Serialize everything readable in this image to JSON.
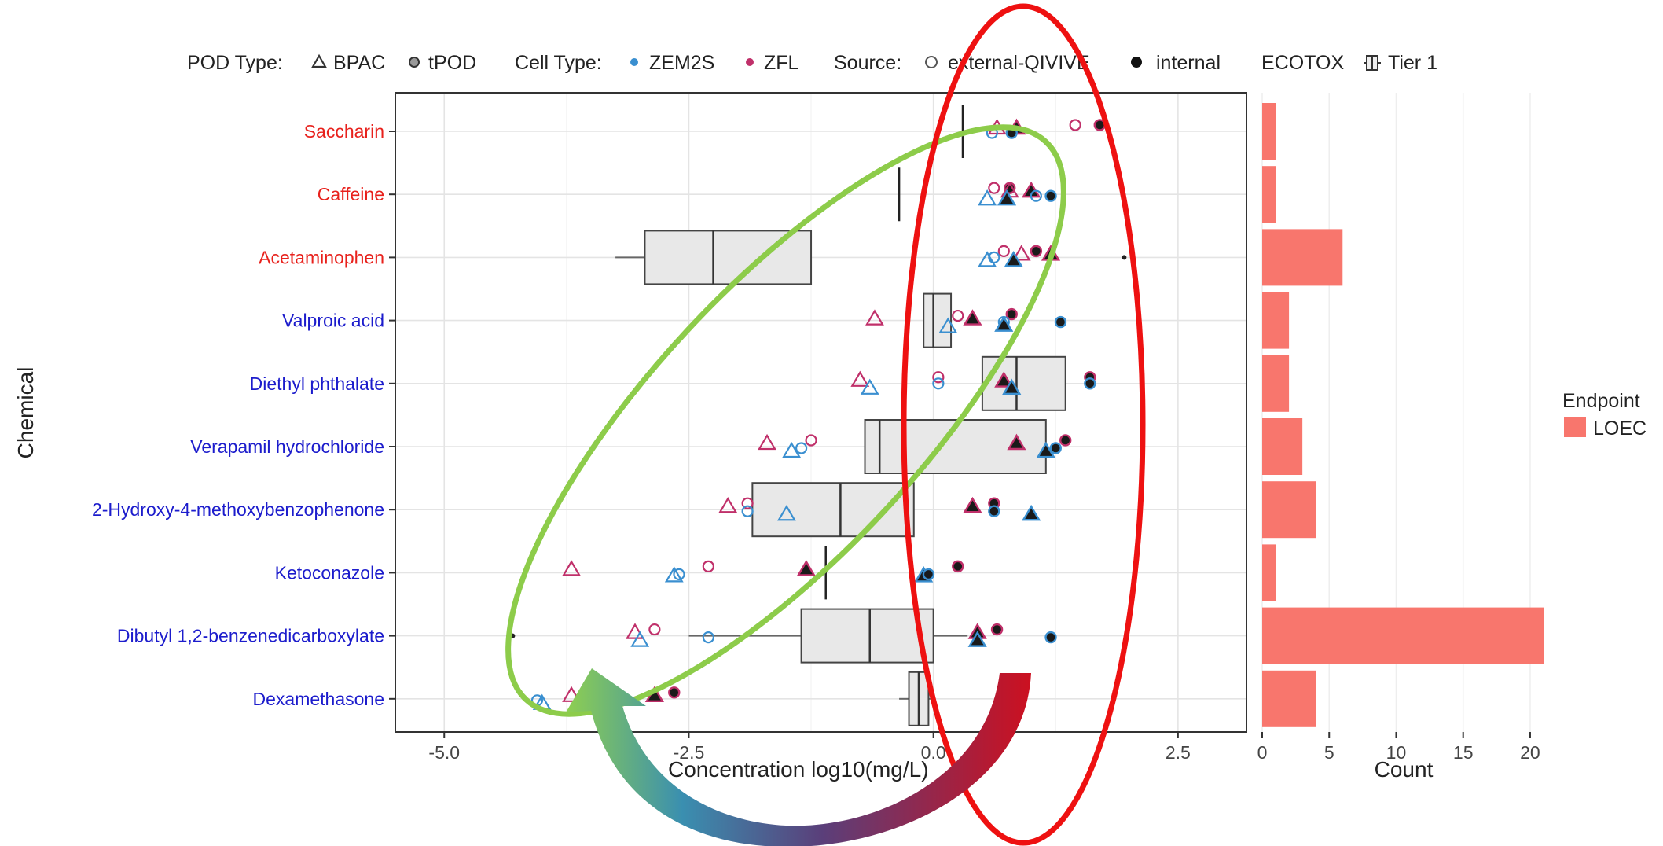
{
  "legend": {
    "pod_type_title": "POD Type:",
    "pod_bpac": "BPAC",
    "pod_tpod": "tPOD",
    "cell_type_title": "Cell Type:",
    "cell_zem2s": "ZEM2S",
    "cell_zfl": "ZFL",
    "source_title": "Source:",
    "source_external": "external-QIVIVE",
    "source_internal": "internal",
    "ecotox_title": "ECOTOX",
    "ecotox_tier": "Tier 1",
    "endpoint_title": "Endpoint",
    "endpoint_loec": "LOEC"
  },
  "colors": {
    "red_chemical": "#e8211c",
    "blue_chemical": "#1c1ccc",
    "zem2s": "#3a8fd0",
    "zfl": "#c0306a",
    "internal_fill": "#1a1a1a",
    "bar": "#f8766d",
    "box_fill": "#e8e8e8",
    "red_ellipse": "#ee1111",
    "green_ellipse": "#8dcc4a"
  },
  "chart_data": [
    {
      "type": "scatter",
      "title": "",
      "xlabel": "Concentration log10(mg/L)",
      "ylabel": "Chemical",
      "xlim": [
        -5.5,
        3.2
      ],
      "xticks": [
        -5.0,
        -2.5,
        0.0,
        2.5
      ],
      "xtick_labels": [
        "-5.0",
        "-2.5",
        "0.0",
        "2.5"
      ],
      "grid": true,
      "chemicals": [
        {
          "name": "Saccharin",
          "group": "red"
        },
        {
          "name": "Caffeine",
          "group": "red"
        },
        {
          "name": "Acetaminophen",
          "group": "red"
        },
        {
          "name": "Valproic acid",
          "group": "blue"
        },
        {
          "name": "Diethyl phthalate",
          "group": "blue"
        },
        {
          "name": "Verapamil hydrochloride",
          "group": "blue"
        },
        {
          "name": "2-Hydroxy-4-methoxybenzophenone",
          "group": "blue"
        },
        {
          "name": "Ketoconazole",
          "group": "blue"
        },
        {
          "name": "Dibutyl 1,2-benzenedicarboxylate",
          "group": "blue"
        },
        {
          "name": "Dexamethasone",
          "group": "blue"
        }
      ],
      "ecotox_boxes": [
        {
          "chemical": "Saccharin",
          "min": 0.3,
          "q1": 0.3,
          "median": 0.3,
          "q3": 0.3,
          "max": 0.3
        },
        {
          "chemical": "Caffeine",
          "min": -0.35,
          "q1": -0.35,
          "median": -0.35,
          "q3": -0.35,
          "max": -0.35
        },
        {
          "chemical": "Acetaminophen",
          "min": -3.25,
          "q1": -2.95,
          "median": -2.25,
          "q3": -1.25,
          "max": -1.25,
          "outliers": [
            1.95
          ]
        },
        {
          "chemical": "Valproic acid",
          "min": -0.1,
          "q1": -0.1,
          "median": 0.0,
          "q3": 0.18,
          "max": 0.18
        },
        {
          "chemical": "Diethyl phthalate",
          "min": 0.5,
          "q1": 0.5,
          "median": 0.85,
          "q3": 1.35,
          "max": 1.35
        },
        {
          "chemical": "Verapamil hydrochloride",
          "min": -0.7,
          "q1": -0.7,
          "median": -0.55,
          "q3": 1.15,
          "max": 1.15
        },
        {
          "chemical": "2-Hydroxy-4-methoxybenzophenone",
          "min": -1.85,
          "q1": -1.85,
          "median": -0.95,
          "q3": -0.2,
          "max": -0.2
        },
        {
          "chemical": "Ketoconazole",
          "min": -1.1,
          "q1": -1.1,
          "median": -1.1,
          "q3": -1.1,
          "max": -1.1
        },
        {
          "chemical": "Dibutyl 1,2-benzenedicarboxylate",
          "min": -2.5,
          "q1": -1.35,
          "median": -0.65,
          "q3": 0.0,
          "max": 0.35,
          "outliers": [
            -4.3
          ]
        },
        {
          "chemical": "Dexamethasone",
          "min": -0.35,
          "q1": -0.25,
          "median": -0.15,
          "q3": -0.05,
          "max": 0.0
        }
      ],
      "points": [
        {
          "chemical": "Saccharin",
          "x": 0.65,
          "pod": "BPAC",
          "cell": "ZFL",
          "source": "external-QIVIVE",
          "dy": 0.1
        },
        {
          "chemical": "Saccharin",
          "x": 0.85,
          "pod": "BPAC",
          "cell": "ZFL",
          "source": "internal",
          "dy": 0.1
        },
        {
          "chemical": "Saccharin",
          "x": 1.45,
          "pod": "tPOD",
          "cell": "ZFL",
          "source": "external-QIVIVE",
          "dy": 0.2
        },
        {
          "chemical": "Saccharin",
          "x": 1.7,
          "pod": "tPOD",
          "cell": "ZFL",
          "source": "internal",
          "dy": 0.2
        },
        {
          "chemical": "Saccharin",
          "x": 0.6,
          "pod": "tPOD",
          "cell": "ZEM2S",
          "source": "external-QIVIVE",
          "dy": -0.05
        },
        {
          "chemical": "Saccharin",
          "x": 0.8,
          "pod": "tPOD",
          "cell": "ZEM2S",
          "source": "internal",
          "dy": -0.05
        },
        {
          "chemical": "Caffeine",
          "x": 0.62,
          "pod": "tPOD",
          "cell": "ZFL",
          "source": "external-QIVIVE",
          "dy": 0.2
        },
        {
          "chemical": "Caffeine",
          "x": 0.78,
          "pod": "tPOD",
          "cell": "ZFL",
          "source": "internal",
          "dy": 0.2
        },
        {
          "chemical": "Caffeine",
          "x": 0.78,
          "pod": "BPAC",
          "cell": "ZFL",
          "source": "external-QIVIVE",
          "dy": 0.1
        },
        {
          "chemical": "Caffeine",
          "x": 1.0,
          "pod": "BPAC",
          "cell": "ZFL",
          "source": "internal",
          "dy": 0.1
        },
        {
          "chemical": "Caffeine",
          "x": 0.55,
          "pod": "BPAC",
          "cell": "ZEM2S",
          "source": "external-QIVIVE",
          "dy": -0.15
        },
        {
          "chemical": "Caffeine",
          "x": 0.75,
          "pod": "BPAC",
          "cell": "ZEM2S",
          "source": "internal",
          "dy": -0.15
        },
        {
          "chemical": "Caffeine",
          "x": 1.05,
          "pod": "tPOD",
          "cell": "ZEM2S",
          "source": "external-QIVIVE",
          "dy": -0.05
        },
        {
          "chemical": "Caffeine",
          "x": 1.2,
          "pod": "tPOD",
          "cell": "ZEM2S",
          "source": "internal",
          "dy": -0.05
        },
        {
          "chemical": "Acetaminophen",
          "x": 0.72,
          "pod": "tPOD",
          "cell": "ZFL",
          "source": "external-QIVIVE",
          "dy": 0.2
        },
        {
          "chemical": "Acetaminophen",
          "x": 0.9,
          "pod": "BPAC",
          "cell": "ZFL",
          "source": "external-QIVIVE",
          "dy": 0.1
        },
        {
          "chemical": "Acetaminophen",
          "x": 1.05,
          "pod": "tPOD",
          "cell": "ZFL",
          "source": "internal",
          "dy": 0.2
        },
        {
          "chemical": "Acetaminophen",
          "x": 1.2,
          "pod": "BPAC",
          "cell": "ZFL",
          "source": "internal",
          "dy": 0.1
        },
        {
          "chemical": "Acetaminophen",
          "x": 0.62,
          "pod": "tPOD",
          "cell": "ZEM2S",
          "source": "external-QIVIVE",
          "dy": 0.0
        },
        {
          "chemical": "Acetaminophen",
          "x": 0.55,
          "pod": "BPAC",
          "cell": "ZEM2S",
          "source": "external-QIVIVE",
          "dy": -0.1
        },
        {
          "chemical": "Acetaminophen",
          "x": 0.82,
          "pod": "BPAC",
          "cell": "ZEM2S",
          "source": "internal",
          "dy": -0.1
        },
        {
          "chemical": "Valproic acid",
          "x": -0.6,
          "pod": "BPAC",
          "cell": "ZFL",
          "source": "external-QIVIVE",
          "dy": 0.05
        },
        {
          "chemical": "Valproic acid",
          "x": 0.25,
          "pod": "tPOD",
          "cell": "ZFL",
          "source": "external-QIVIVE",
          "dy": 0.15
        },
        {
          "chemical": "Valproic acid",
          "x": 0.4,
          "pod": "BPAC",
          "cell": "ZFL",
          "source": "internal",
          "dy": 0.05
        },
        {
          "chemical": "Valproic acid",
          "x": 0.8,
          "pod": "tPOD",
          "cell": "ZFL",
          "source": "internal",
          "dy": 0.2
        },
        {
          "chemical": "Valproic acid",
          "x": 0.15,
          "pod": "BPAC",
          "cell": "ZEM2S",
          "source": "external-QIVIVE",
          "dy": -0.2
        },
        {
          "chemical": "Valproic acid",
          "x": 0.72,
          "pod": "tPOD",
          "cell": "ZEM2S",
          "source": "external-QIVIVE",
          "dy": -0.05
        },
        {
          "chemical": "Valproic acid",
          "x": 0.72,
          "pod": "BPAC",
          "cell": "ZEM2S",
          "source": "internal",
          "dy": -0.15
        },
        {
          "chemical": "Valproic acid",
          "x": 1.3,
          "pod": "tPOD",
          "cell": "ZEM2S",
          "source": "internal",
          "dy": -0.05
        },
        {
          "chemical": "Diethyl phthalate",
          "x": -0.75,
          "pod": "BPAC",
          "cell": "ZFL",
          "source": "external-QIVIVE",
          "dy": 0.1
        },
        {
          "chemical": "Diethyl phthalate",
          "x": 0.05,
          "pod": "tPOD",
          "cell": "ZFL",
          "source": "external-QIVIVE",
          "dy": 0.2
        },
        {
          "chemical": "Diethyl phthalate",
          "x": 0.72,
          "pod": "BPAC",
          "cell": "ZFL",
          "source": "internal",
          "dy": 0.08
        },
        {
          "chemical": "Diethyl phthalate",
          "x": 1.6,
          "pod": "tPOD",
          "cell": "ZFL",
          "source": "internal",
          "dy": 0.2
        },
        {
          "chemical": "Diethyl phthalate",
          "x": -0.65,
          "pod": "BPAC",
          "cell": "ZEM2S",
          "source": "external-QIVIVE",
          "dy": -0.15
        },
        {
          "chemical": "Diethyl phthalate",
          "x": 0.05,
          "pod": "tPOD",
          "cell": "ZEM2S",
          "source": "external-QIVIVE",
          "dy": 0.0
        },
        {
          "chemical": "Diethyl phthalate",
          "x": 0.8,
          "pod": "BPAC",
          "cell": "ZEM2S",
          "source": "internal",
          "dy": -0.15
        },
        {
          "chemical": "Diethyl phthalate",
          "x": 1.6,
          "pod": "tPOD",
          "cell": "ZEM2S",
          "source": "internal",
          "dy": 0.0
        },
        {
          "chemical": "Verapamil hydrochloride",
          "x": -1.7,
          "pod": "BPAC",
          "cell": "ZFL",
          "source": "external-QIVIVE",
          "dy": 0.1
        },
        {
          "chemical": "Verapamil hydrochloride",
          "x": -1.25,
          "pod": "tPOD",
          "cell": "ZFL",
          "source": "external-QIVIVE",
          "dy": 0.2
        },
        {
          "chemical": "Verapamil hydrochloride",
          "x": 0.85,
          "pod": "BPAC",
          "cell": "ZFL",
          "source": "internal",
          "dy": 0.1
        },
        {
          "chemical": "Verapamil hydrochloride",
          "x": 1.35,
          "pod": "tPOD",
          "cell": "ZFL",
          "source": "internal",
          "dy": 0.2
        },
        {
          "chemical": "Verapamil hydrochloride",
          "x": -1.45,
          "pod": "BPAC",
          "cell": "ZEM2S",
          "source": "external-QIVIVE",
          "dy": -0.15
        },
        {
          "chemical": "Verapamil hydrochloride",
          "x": -1.35,
          "pod": "tPOD",
          "cell": "ZEM2S",
          "source": "external-QIVIVE",
          "dy": -0.05
        },
        {
          "chemical": "Verapamil hydrochloride",
          "x": 1.15,
          "pod": "BPAC",
          "cell": "ZEM2S",
          "source": "internal",
          "dy": -0.15
        },
        {
          "chemical": "Verapamil hydrochloride",
          "x": 1.25,
          "pod": "tPOD",
          "cell": "ZEM2S",
          "source": "internal",
          "dy": -0.05
        },
        {
          "chemical": "2-Hydroxy-4-methoxybenzophenone",
          "x": -2.1,
          "pod": "BPAC",
          "cell": "ZFL",
          "source": "external-QIVIVE",
          "dy": 0.1
        },
        {
          "chemical": "2-Hydroxy-4-methoxybenzophenone",
          "x": -1.9,
          "pod": "tPOD",
          "cell": "ZFL",
          "source": "external-QIVIVE",
          "dy": 0.2
        },
        {
          "chemical": "2-Hydroxy-4-methoxybenzophenone",
          "x": 0.4,
          "pod": "BPAC",
          "cell": "ZFL",
          "source": "internal",
          "dy": 0.1
        },
        {
          "chemical": "2-Hydroxy-4-methoxybenzophenone",
          "x": 0.62,
          "pod": "tPOD",
          "cell": "ZFL",
          "source": "internal",
          "dy": 0.2
        },
        {
          "chemical": "2-Hydroxy-4-methoxybenzophenone",
          "x": -1.5,
          "pod": "BPAC",
          "cell": "ZEM2S",
          "source": "external-QIVIVE",
          "dy": -0.15
        },
        {
          "chemical": "2-Hydroxy-4-methoxybenzophenone",
          "x": -1.9,
          "pod": "tPOD",
          "cell": "ZEM2S",
          "source": "external-QIVIVE",
          "dy": -0.05
        },
        {
          "chemical": "2-Hydroxy-4-methoxybenzophenone",
          "x": 1.0,
          "pod": "BPAC",
          "cell": "ZEM2S",
          "source": "internal",
          "dy": -0.15
        },
        {
          "chemical": "2-Hydroxy-4-methoxybenzophenone",
          "x": 0.62,
          "pod": "tPOD",
          "cell": "ZEM2S",
          "source": "internal",
          "dy": -0.05
        },
        {
          "chemical": "Ketoconazole",
          "x": -3.7,
          "pod": "BPAC",
          "cell": "ZFL",
          "source": "external-QIVIVE",
          "dy": 0.1
        },
        {
          "chemical": "Ketoconazole",
          "x": -2.3,
          "pod": "tPOD",
          "cell": "ZFL",
          "source": "external-QIVIVE",
          "dy": 0.2
        },
        {
          "chemical": "Ketoconazole",
          "x": -1.3,
          "pod": "BPAC",
          "cell": "ZFL",
          "source": "internal",
          "dy": 0.1
        },
        {
          "chemical": "Ketoconazole",
          "x": 0.25,
          "pod": "tPOD",
          "cell": "ZFL",
          "source": "internal",
          "dy": 0.2
        },
        {
          "chemical": "Ketoconazole",
          "x": -2.65,
          "pod": "BPAC",
          "cell": "ZEM2S",
          "source": "external-QIVIVE",
          "dy": -0.1
        },
        {
          "chemical": "Ketoconazole",
          "x": -2.6,
          "pod": "tPOD",
          "cell": "ZEM2S",
          "source": "external-QIVIVE",
          "dy": -0.05
        },
        {
          "chemical": "Ketoconazole",
          "x": -0.1,
          "pod": "BPAC",
          "cell": "ZEM2S",
          "source": "internal",
          "dy": -0.1
        },
        {
          "chemical": "Ketoconazole",
          "x": -0.05,
          "pod": "tPOD",
          "cell": "ZEM2S",
          "source": "internal",
          "dy": -0.05
        },
        {
          "chemical": "Dibutyl 1,2-benzenedicarboxylate",
          "x": -3.05,
          "pod": "BPAC",
          "cell": "ZFL",
          "source": "external-QIVIVE",
          "dy": 0.1
        },
        {
          "chemical": "Dibutyl 1,2-benzenedicarboxylate",
          "x": -2.85,
          "pod": "tPOD",
          "cell": "ZFL",
          "source": "external-QIVIVE",
          "dy": 0.2
        },
        {
          "chemical": "Dibutyl 1,2-benzenedicarboxylate",
          "x": 0.45,
          "pod": "BPAC",
          "cell": "ZFL",
          "source": "internal",
          "dy": 0.1
        },
        {
          "chemical": "Dibutyl 1,2-benzenedicarboxylate",
          "x": 0.65,
          "pod": "tPOD",
          "cell": "ZFL",
          "source": "internal",
          "dy": 0.2
        },
        {
          "chemical": "Dibutyl 1,2-benzenedicarboxylate",
          "x": -3.0,
          "pod": "BPAC",
          "cell": "ZEM2S",
          "source": "external-QIVIVE",
          "dy": -0.15
        },
        {
          "chemical": "Dibutyl 1,2-benzenedicarboxylate",
          "x": -2.3,
          "pod": "tPOD",
          "cell": "ZEM2S",
          "source": "external-QIVIVE",
          "dy": -0.05
        },
        {
          "chemical": "Dibutyl 1,2-benzenedicarboxylate",
          "x": 0.45,
          "pod": "BPAC",
          "cell": "ZEM2S",
          "source": "internal",
          "dy": -0.15
        },
        {
          "chemical": "Dibutyl 1,2-benzenedicarboxylate",
          "x": 1.2,
          "pod": "tPOD",
          "cell": "ZEM2S",
          "source": "internal",
          "dy": -0.05
        },
        {
          "chemical": "Dexamethasone",
          "x": -3.7,
          "pod": "BPAC",
          "cell": "ZFL",
          "source": "external-QIVIVE",
          "dy": 0.1
        },
        {
          "chemical": "Dexamethasone",
          "x": -3.5,
          "pod": "tPOD",
          "cell": "ZFL",
          "source": "external-QIVIVE",
          "dy": 0.2
        },
        {
          "chemical": "Dexamethasone",
          "x": -2.85,
          "pod": "BPAC",
          "cell": "ZFL",
          "source": "internal",
          "dy": 0.1
        },
        {
          "chemical": "Dexamethasone",
          "x": -2.65,
          "pod": "tPOD",
          "cell": "ZFL",
          "source": "internal",
          "dy": 0.2
        },
        {
          "chemical": "Dexamethasone",
          "x": -4.0,
          "pod": "BPAC",
          "cell": "ZEM2S",
          "source": "external-QIVIVE",
          "dy": -0.15
        },
        {
          "chemical": "Dexamethasone",
          "x": -4.05,
          "pod": "tPOD",
          "cell": "ZEM2S",
          "source": "external-QIVIVE",
          "dy": -0.05
        }
      ]
    },
    {
      "type": "bar",
      "orientation": "horizontal",
      "title": "",
      "xlabel": "Count",
      "ylabel": "",
      "xlim": [
        0,
        21
      ],
      "xticks": [
        0,
        5,
        10,
        15,
        20
      ],
      "xtick_labels": [
        "0",
        "5",
        "10",
        "15",
        "20"
      ],
      "categories": [
        "Saccharin",
        "Caffeine",
        "Acetaminophen",
        "Valproic acid",
        "Diethyl phthalate",
        "Verapamil hydrochloride",
        "2-Hydroxy-4-methoxybenzophenone",
        "Ketoconazole",
        "Dibutyl 1,2-benzenedicarboxylate",
        "Dexamethasone"
      ],
      "series": [
        {
          "name": "LOEC",
          "values": [
            1,
            1,
            6,
            2,
            2,
            3,
            4,
            1,
            21,
            4
          ]
        }
      ],
      "legend": "right"
    }
  ]
}
